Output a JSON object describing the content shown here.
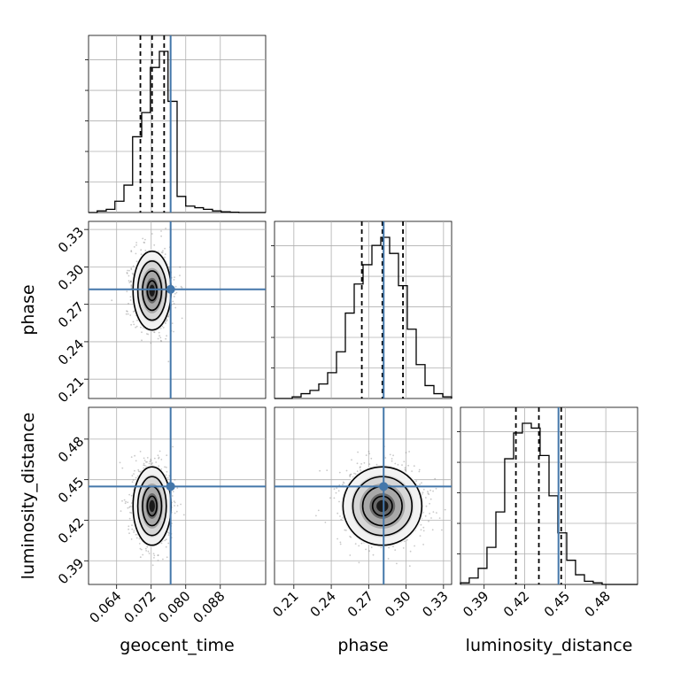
{
  "chart_data": {
    "type": "corner",
    "parameters": [
      "geocent_time",
      "phase",
      "luminosity_distance"
    ],
    "truth": {
      "geocent_time": 0.0765,
      "phase": 0.282,
      "luminosity_distance": 0.445
    },
    "truth_color": "#4477aa",
    "quantile_lines": {
      "geocent_time": [
        0.0695,
        0.0722,
        0.075
      ],
      "phase": [
        0.2645,
        0.281,
        0.2975
      ],
      "luminosity_distance": [
        0.4135,
        0.4305,
        0.447
      ]
    },
    "ranges": {
      "geocent_time": [
        0.0575,
        0.0985
      ],
      "phase": [
        0.1945,
        0.3365
      ],
      "luminosity_distance": [
        0.3725,
        0.5035
      ]
    },
    "ticks": {
      "geocent_time": [
        "0.064",
        "0.072",
        "0.080",
        "0.088"
      ],
      "phase": [
        "0.21",
        "0.24",
        "0.27",
        "0.30",
        "0.33"
      ],
      "luminosity_distance": [
        "0.39",
        "0.42",
        "0.45",
        "0.48"
      ]
    },
    "histograms": {
      "geocent_time": {
        "bins": [
          0.0575,
          0.0595,
          0.0616,
          0.0636,
          0.0657,
          0.0677,
          0.0698,
          0.0718,
          0.0739,
          0.0759,
          0.078,
          0.08,
          0.0821,
          0.0841,
          0.0862,
          0.0882,
          0.0903,
          0.0923,
          0.0944,
          0.0964,
          0.0985
        ],
        "counts": [
          0,
          0.01,
          0.02,
          0.07,
          0.17,
          0.47,
          0.62,
          0.9,
          1.0,
          0.69,
          0.1,
          0.04,
          0.03,
          0.02,
          0.01,
          0.005,
          0.002,
          0,
          0,
          0
        ]
      },
      "phase": {
        "bins": [
          0.1945,
          0.2016,
          0.2087,
          0.2158,
          0.2229,
          0.23,
          0.2371,
          0.2442,
          0.2513,
          0.2584,
          0.2655,
          0.2726,
          0.2797,
          0.2868,
          0.2939,
          0.301,
          0.3081,
          0.3152,
          0.3223,
          0.3294,
          0.3365
        ],
        "counts": [
          0,
          0.0,
          0.01,
          0.03,
          0.05,
          0.09,
          0.16,
          0.29,
          0.53,
          0.71,
          0.83,
          0.95,
          1.0,
          0.9,
          0.7,
          0.43,
          0.21,
          0.08,
          0.03,
          0.01
        ]
      },
      "luminosity_distance": {
        "bins": [
          0.3725,
          0.379,
          0.3856,
          0.3921,
          0.3987,
          0.4052,
          0.4118,
          0.4183,
          0.4249,
          0.4314,
          0.438,
          0.4445,
          0.4511,
          0.4576,
          0.4642,
          0.4707,
          0.4773,
          0.4838,
          0.4904,
          0.4969,
          0.5035
        ],
        "counts": [
          0.01,
          0.04,
          0.1,
          0.23,
          0.45,
          0.78,
          0.94,
          1.0,
          0.97,
          0.8,
          0.55,
          0.32,
          0.15,
          0.06,
          0.02,
          0.01,
          0.0,
          0,
          0,
          0
        ]
      }
    },
    "scatter_pairs": [
      {
        "x": "geocent_time",
        "y": "phase",
        "center": [
          0.0722,
          0.281
        ],
        "sigma": [
          0.0022,
          0.0158
        ]
      },
      {
        "x": "geocent_time",
        "y": "luminosity_distance",
        "center": [
          0.0722,
          0.4305
        ],
        "sigma": [
          0.0022,
          0.0145
        ]
      },
      {
        "x": "phase",
        "y": "luminosity_distance",
        "center": [
          0.281,
          0.4305
        ],
        "sigma": [
          0.0158,
          0.0145
        ]
      }
    ],
    "grid": true
  }
}
